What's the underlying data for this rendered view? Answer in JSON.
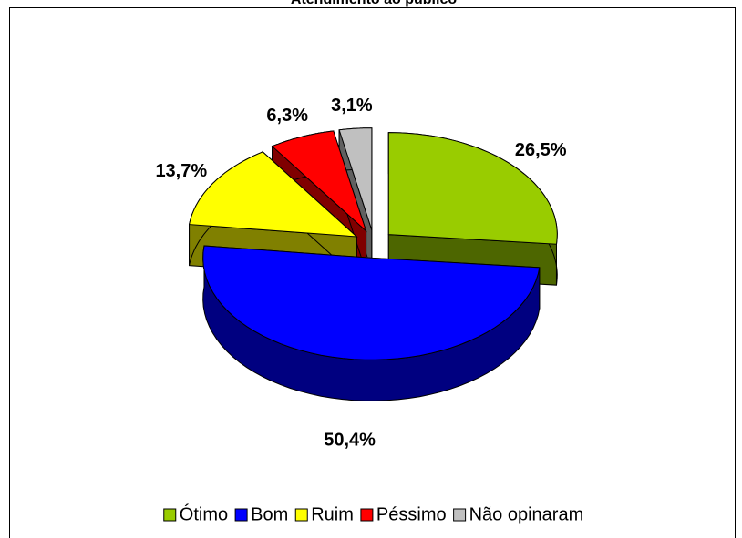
{
  "chart_data": {
    "type": "pie3d",
    "title": "Atendimento ao público",
    "categories": [
      "Ótimo",
      "Bom",
      "Ruim",
      "Péssimo",
      "Não opinaram"
    ],
    "values": [
      26.5,
      50.4,
      13.7,
      6.3,
      3.1
    ],
    "value_labels": [
      "26,5%",
      "50,4%",
      "13,7%",
      "6,3%",
      "3,1%"
    ],
    "colors": [
      "#99cc00",
      "#0000ff",
      "#ffff00",
      "#ff0000",
      "#c0c0c0"
    ],
    "legend": "bottom"
  }
}
